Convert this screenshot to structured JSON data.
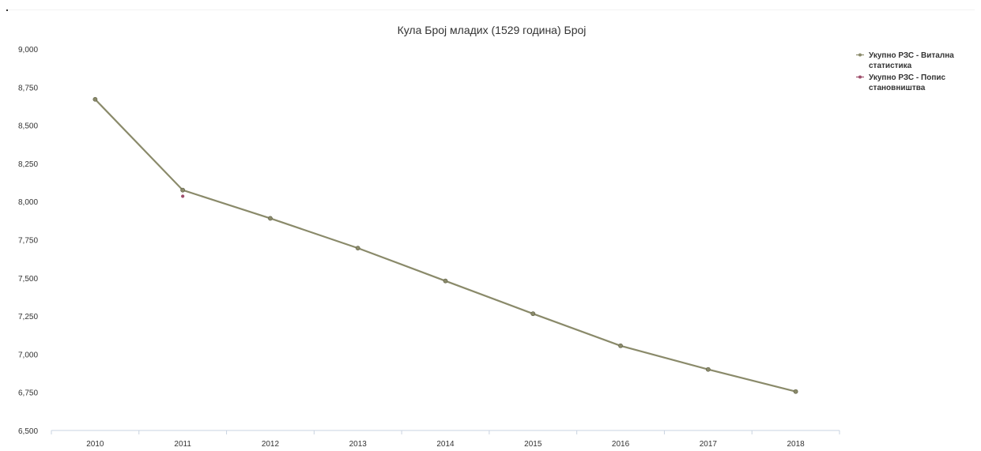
{
  "chart_data": {
    "type": "line",
    "title": "Кула Број младих (1529 година) Број",
    "xlabel": "",
    "ylabel": "",
    "categories": [
      "2010",
      "2011",
      "2012",
      "2013",
      "2014",
      "2015",
      "2016",
      "2017",
      "2018"
    ],
    "y_ticks": [
      "6,500",
      "6,750",
      "7,000",
      "7,250",
      "7,500",
      "7,750",
      "8,000",
      "8,250",
      "8,500",
      "8,750",
      "9,000"
    ],
    "ylim": [
      6500,
      9000
    ],
    "grid": false,
    "legend_position": "top-right",
    "series": [
      {
        "name": "Укупно РЗС - Витална статистика",
        "color": "#8a8a6a",
        "values": [
          8670,
          8075,
          7890,
          7695,
          7480,
          7265,
          7055,
          6900,
          6755
        ]
      },
      {
        "name": "Укупно РЗС - Попис становништва",
        "color": "#9e4d6b",
        "values": [
          null,
          8035,
          null,
          null,
          null,
          null,
          null,
          null,
          null
        ]
      }
    ]
  }
}
